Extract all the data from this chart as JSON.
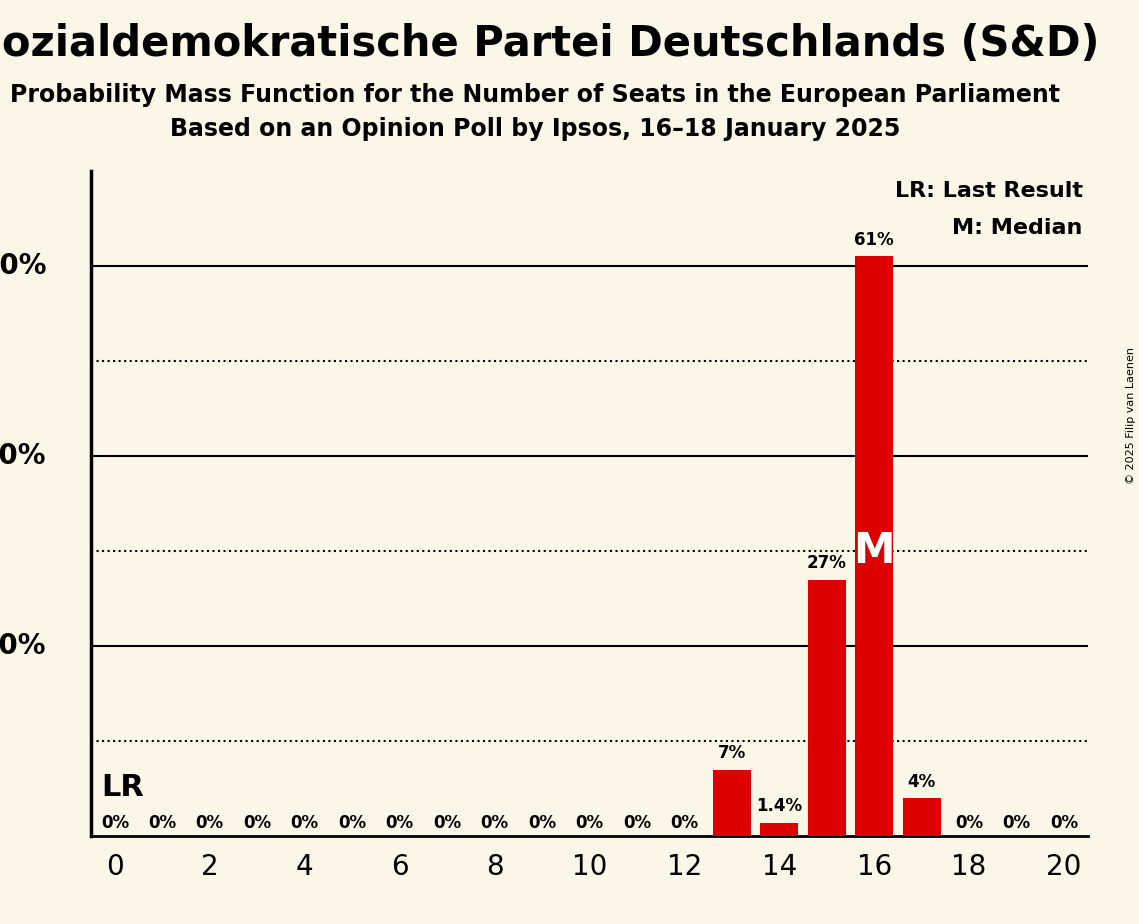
{
  "title": "Sozialdemokratische Partei Deutschlands (S&D)",
  "subtitle1": "Probability Mass Function for the Number of Seats in the European Parliament",
  "subtitle2": "Based on an Opinion Poll by Ipsos, 16–18 January 2025",
  "copyright": "© 2025 Filip van Laenen",
  "background_color": "#faf6e8",
  "bar_color": "#dd0000",
  "seats": [
    0,
    1,
    2,
    3,
    4,
    5,
    6,
    7,
    8,
    9,
    10,
    11,
    12,
    13,
    14,
    15,
    16,
    17,
    18,
    19,
    20
  ],
  "probabilities": [
    0,
    0,
    0,
    0,
    0,
    0,
    0,
    0,
    0,
    0,
    0,
    0,
    0,
    7,
    1.4,
    27,
    61,
    4,
    0,
    0,
    0
  ],
  "labels": [
    "0%",
    "0%",
    "0%",
    "0%",
    "0%",
    "0%",
    "0%",
    "0%",
    "0%",
    "0%",
    "0%",
    "0%",
    "0%",
    "7%",
    "1.4%",
    "27%",
    "61%",
    "4%",
    "0%",
    "0%",
    "0%"
  ],
  "last_result": 13,
  "median": 16,
  "xlim": [
    -0.5,
    20.5
  ],
  "ylim": [
    0,
    70
  ],
  "solid_lines": [
    20,
    40,
    60
  ],
  "dotted_lines": [
    10,
    30,
    50
  ],
  "legend_text1": "LR: Last Result",
  "legend_text2": "M: Median",
  "lr_label": "LR",
  "median_label": "M",
  "title_fontsize": 30,
  "subtitle_fontsize": 17,
  "label_fontsize": 12,
  "axis_fontsize": 20,
  "legend_fontsize": 16
}
